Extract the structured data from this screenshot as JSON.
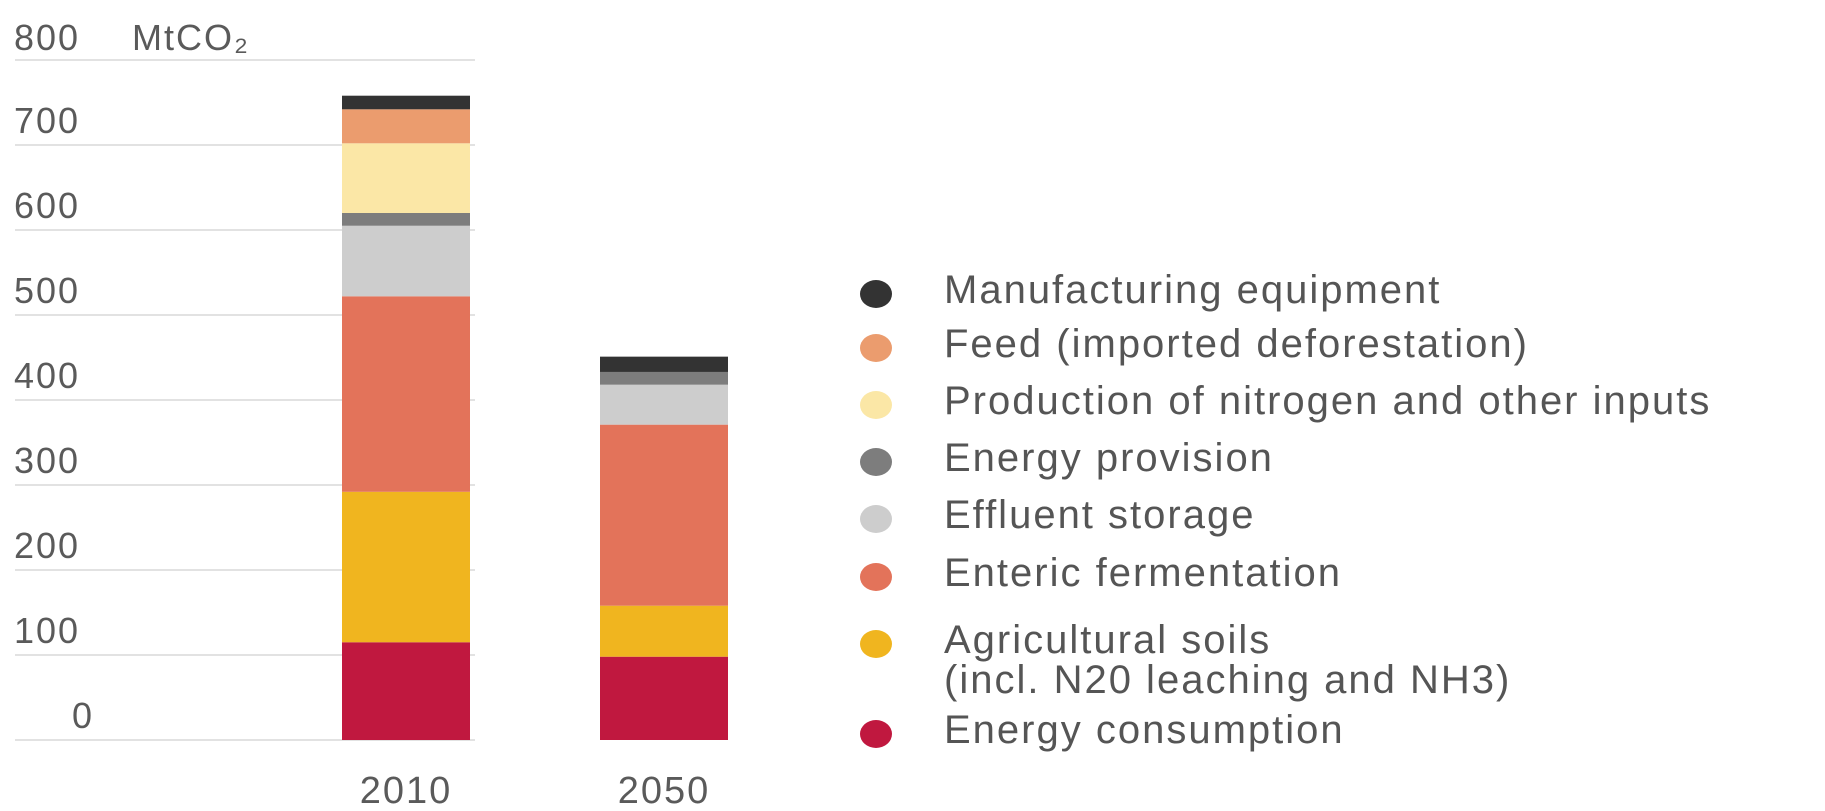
{
  "chart_data": {
    "type": "bar",
    "stacked": true,
    "unit_label": "MtCO₂",
    "ylim": [
      0,
      800
    ],
    "y_ticks": [
      "0",
      "100",
      "200",
      "300",
      "400",
      "500",
      "600",
      "700",
      "800"
    ],
    "categories": [
      "2010",
      "2050"
    ],
    "grid": true,
    "legend_position": "right",
    "series": [
      {
        "name": "Energy consumption",
        "color": "#c0183f",
        "values": [
          115,
          98
        ]
      },
      {
        "name": "Agricultural soils\n(incl. N20 leaching and NH3)",
        "color": "#f0b51f",
        "values": [
          177,
          60
        ]
      },
      {
        "name": "Enteric fermentation",
        "color": "#e3735a",
        "values": [
          230,
          213
        ]
      },
      {
        "name": "Effluent storage",
        "color": "#cdcdcd",
        "values": [
          83,
          47
        ]
      },
      {
        "name": "Energy provision",
        "color": "#7d7d7d",
        "values": [
          15,
          15
        ]
      },
      {
        "name": "Production of nitrogen and other inputs",
        "color": "#fbe7a6",
        "values": [
          82,
          0
        ]
      },
      {
        "name": "Feed (imported deforestation)",
        "color": "#eb9c6e",
        "values": [
          40,
          0
        ]
      },
      {
        "name": "Manufacturing equipment",
        "color": "#333333",
        "values": [
          16,
          18
        ]
      }
    ]
  }
}
